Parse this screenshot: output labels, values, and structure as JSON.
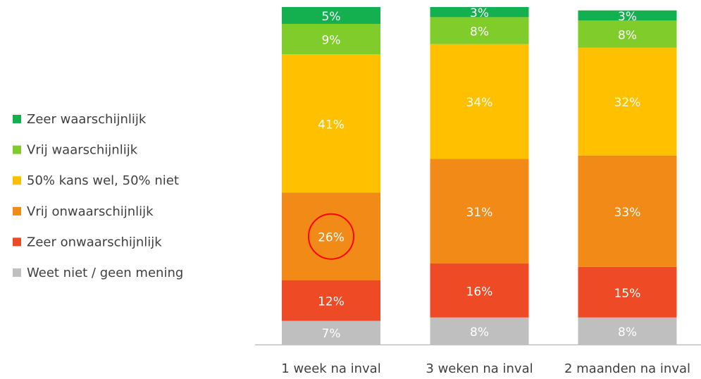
{
  "chart_data": {
    "type": "stacked_bar",
    "categories": [
      "1 week na inval",
      "3 weken na inval",
      "2 maanden na inval"
    ],
    "ylim": [
      0,
      100
    ],
    "series": [
      {
        "name": "Weet niet / geen mening",
        "color": "#bfbfbf",
        "values": [
          7,
          8,
          8
        ],
        "value_labels": [
          "7%",
          "8%",
          "8%"
        ]
      },
      {
        "name": "Zeer onwaarschijnlijk",
        "color": "#ee4a26",
        "values": [
          12,
          16,
          15
        ],
        "value_labels": [
          "12%",
          "16%",
          "15%"
        ]
      },
      {
        "name": "Vrij onwaarschijnlijk",
        "color": "#f28a18",
        "values": [
          26,
          31,
          33
        ],
        "value_labels": [
          "26%",
          "31%",
          "33%"
        ]
      },
      {
        "name": "50% kans wel, 50% niet",
        "color": "#ffc000",
        "values": [
          41,
          34,
          32
        ],
        "value_labels": [
          "41%",
          "34%",
          "32%"
        ]
      },
      {
        "name": "Vrij waarschijnlijk",
        "color": "#7fcc2a",
        "values": [
          9,
          8,
          8
        ],
        "value_labels": [
          "9%",
          "8%",
          "8%"
        ]
      },
      {
        "name": "Zeer waarschijnlijk",
        "color": "#14b050",
        "values": [
          5,
          3,
          3
        ],
        "value_labels": [
          "5%",
          "3%",
          "3%"
        ]
      }
    ]
  }
}
